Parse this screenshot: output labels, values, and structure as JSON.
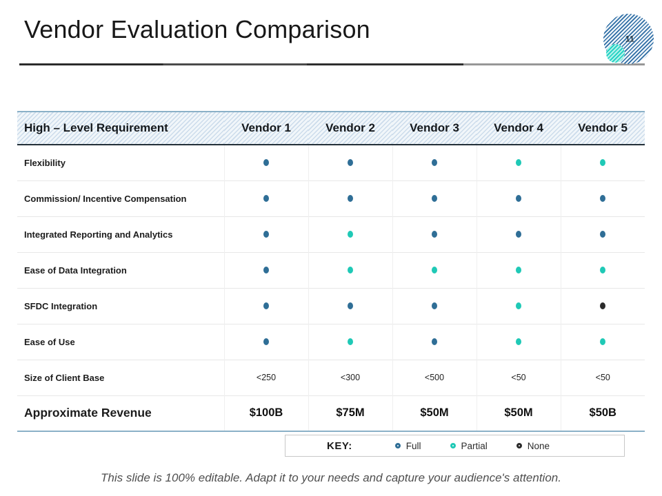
{
  "slide": {
    "title": "Vendor Evaluation Comparison",
    "page_number": "11",
    "footer": "This slide is 100% editable. Adapt it to your needs and capture your audience's attention."
  },
  "colors": {
    "full": "#2f6e96",
    "partial": "#1fc9b6",
    "none": "#2b2b2b",
    "header_stripe": "#ccdceb",
    "table_outer_border": "#8ab0c7"
  },
  "table": {
    "header": [
      "High – Level Requirement",
      "Vendor 1",
      "Vendor 2",
      "Vendor 3",
      "Vendor 4",
      "Vendor 5"
    ],
    "rows": [
      {
        "label": "Flexibility",
        "ratings": [
          "full",
          "full",
          "full",
          "partial",
          "partial"
        ]
      },
      {
        "label": "Commission/ Incentive Compensation",
        "ratings": [
          "full",
          "full",
          "full",
          "full",
          "full"
        ]
      },
      {
        "label": "Integrated Reporting and Analytics",
        "ratings": [
          "full",
          "partial",
          "full",
          "full",
          "full"
        ]
      },
      {
        "label": "Ease of Data Integration",
        "ratings": [
          "full",
          "partial",
          "partial",
          "partial",
          "partial"
        ]
      },
      {
        "label": "SFDC Integration",
        "ratings": [
          "full",
          "full",
          "full",
          "partial",
          "none"
        ]
      },
      {
        "label": "Ease of Use",
        "ratings": [
          "full",
          "partial",
          "full",
          "partial",
          "partial"
        ]
      },
      {
        "label": "Size of Client Base",
        "values": [
          "<250",
          "<300",
          "<500",
          "<50",
          "<50"
        ]
      },
      {
        "label": "Approximate Revenue",
        "values": [
          "$100B",
          "$75M",
          "$50M",
          "$50M",
          "$50B"
        ],
        "emphasis": true
      }
    ]
  },
  "key": {
    "label": "KEY:",
    "items": [
      {
        "name": "Full",
        "color": "#2f6e96"
      },
      {
        "name": "Partial",
        "color": "#1fc9b6"
      },
      {
        "name": "None",
        "color": "#2b2b2b"
      }
    ]
  }
}
